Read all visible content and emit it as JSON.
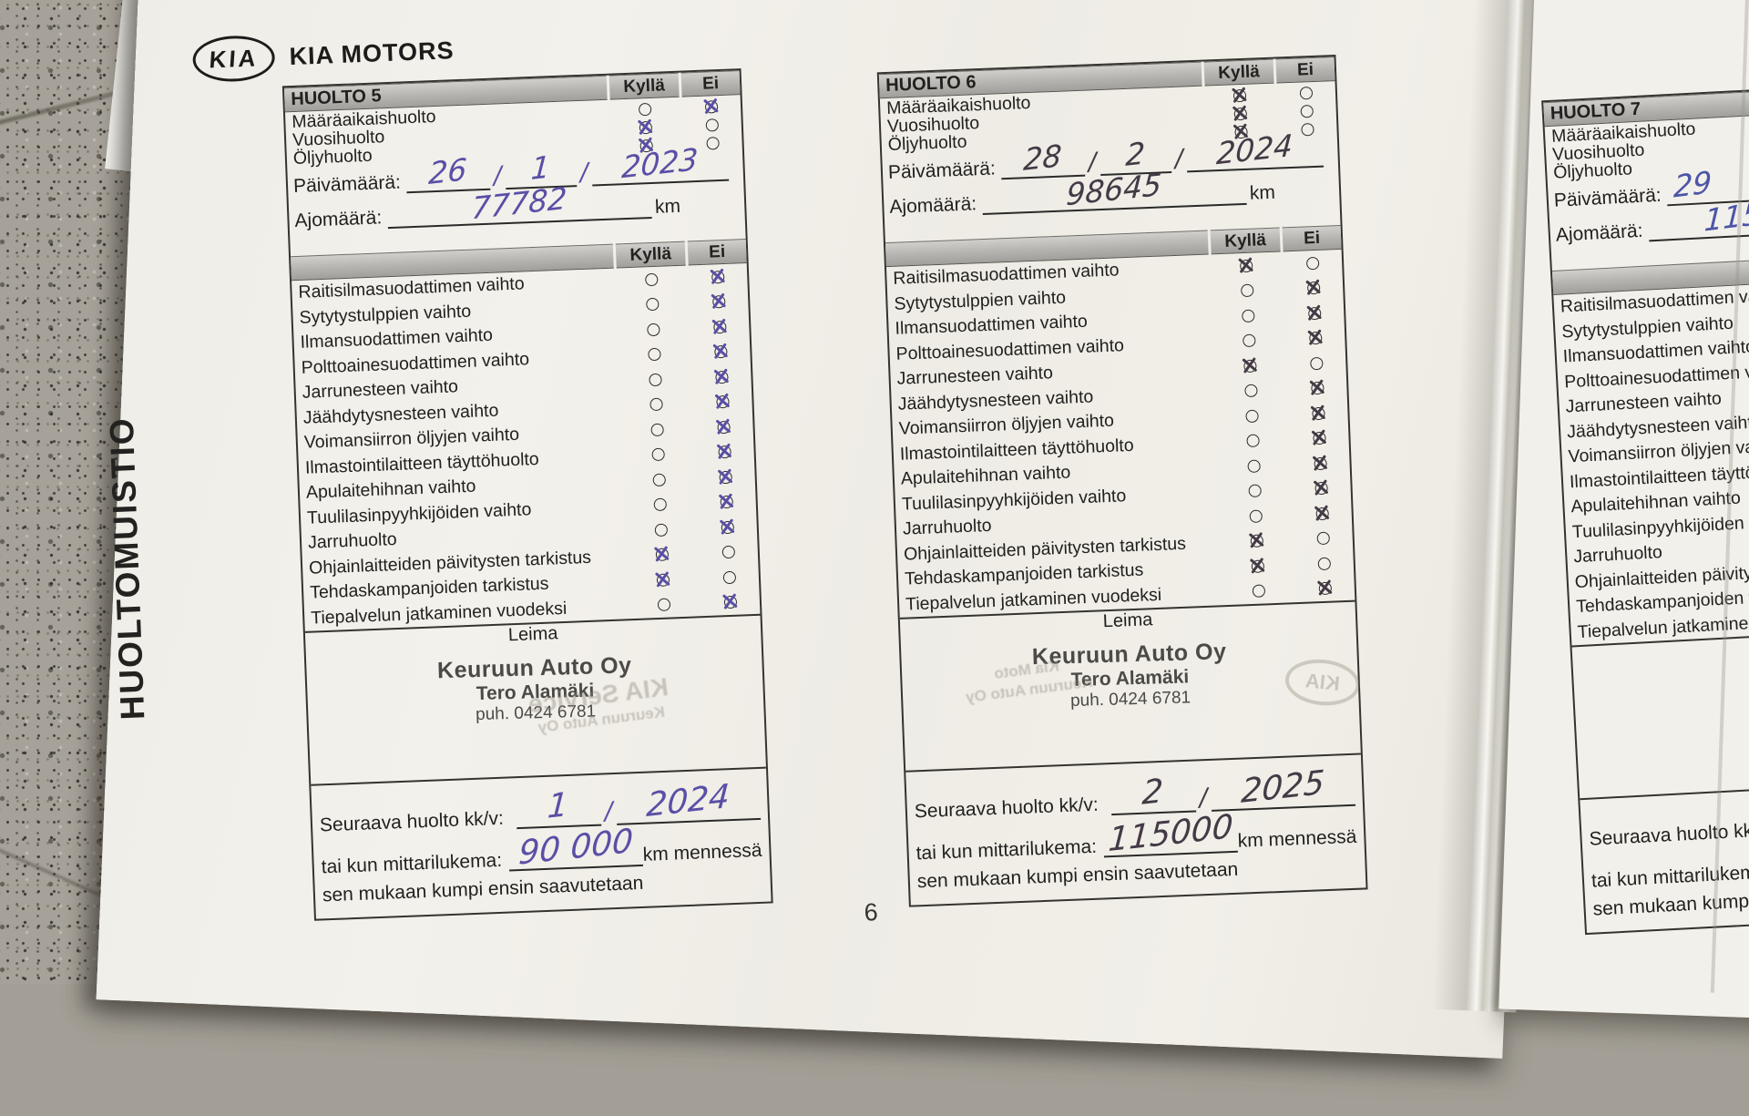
{
  "brand": {
    "logo_text": "KIA",
    "name": "KIA MOTORS"
  },
  "page": {
    "number": "6",
    "side_label": "HUOLTOMUISTIO"
  },
  "labels": {
    "yes": "Kyllä",
    "no": "Ei",
    "date": "Päivämäärä:",
    "mileage": "Ajomäärä:",
    "km": "km",
    "stamp": "Leima",
    "next_service": "Seuraava huolto kk/v:",
    "odometer_alt": "tai kun mittarilukema:",
    "km_by": "km mennessä",
    "whichever_first": "sen mukaan kumpi ensin saavutetaan",
    "slash": "/"
  },
  "top_items": [
    "Määräaikaishuolto",
    "Vuosihuolto",
    "Öljyhuolto"
  ],
  "checklist_items": [
    "Raitisilmasuodattimen vaihto",
    "Sytytystulppien vaihto",
    "Ilmansuodattimen vaihto",
    "Polttoainesuodattimen vaihto",
    "Jarrunesteen vaihto",
    "Jäähdytysnesteen vaihto",
    "Voimansiirron öljyjen vaihto",
    "Ilmastointilaitteen täyttöhuolto",
    "Apulaitehihnan vaihto",
    "Tuulilasinpyyhkijöiden vaihto",
    "Jarruhuolto",
    "Ohjainlaitteiden päivitysten tarkistus",
    "Tehdaskampanjoiden tarkistus",
    "Tiepalvelun jatkaminen vuodeksi"
  ],
  "services": [
    {
      "title": "HUOLTO 5",
      "pen": "#5a4fa6",
      "top_marks": [
        "ei",
        "kylla",
        "kylla"
      ],
      "date": {
        "day": "26",
        "month": "1",
        "year": "2023"
      },
      "mileage": "77782",
      "marks": [
        "ei",
        "ei",
        "ei",
        "ei",
        "ei",
        "ei",
        "ei",
        "ei",
        "ei",
        "ei",
        "ei",
        "kylla",
        "kylla",
        "ei"
      ],
      "stamp": {
        "line1": "Keuruun Auto Oy",
        "line2": "Tero Alamäki",
        "line3": "puh. 0424 6781"
      },
      "ghosts": [
        "KIA Service",
        "Keuruun Auto Oy"
      ],
      "next": {
        "month": "1",
        "year": "2024",
        "odometer": "90 000"
      }
    },
    {
      "title": "HUOLTO 6",
      "pen": "#443a46",
      "top_marks": [
        "kylla",
        "kylla",
        "kylla"
      ],
      "date": {
        "day": "28",
        "month": "2",
        "year": "2024"
      },
      "mileage": "98645",
      "marks": [
        "kylla",
        "ei",
        "ei",
        "ei",
        "kylla",
        "ei",
        "ei",
        "ei",
        "ei",
        "ei",
        "ei",
        "kylla",
        "kylla",
        "ei"
      ],
      "stamp": {
        "line1": "Keuruun Auto Oy",
        "line2": "Tero Alamäki",
        "line3": "puh. 0424 6781"
      },
      "ghosts": [
        "Kia Moto",
        "Keuruun Auto Oy"
      ],
      "ghost_logo": "KIA",
      "next": {
        "month": "2",
        "year": "2025",
        "odometer": "115000"
      }
    },
    {
      "title": "HUOLTO 7",
      "pen": "#4c55a8",
      "top_marks": [],
      "date": {
        "day": "29",
        "month": "",
        "year": ""
      },
      "mileage": "115",
      "marks": [],
      "stamp": {
        "line1": "",
        "line2": "",
        "line3": ""
      },
      "ghosts": [],
      "next": {
        "month": "",
        "year": "",
        "odometer": ""
      }
    }
  ]
}
